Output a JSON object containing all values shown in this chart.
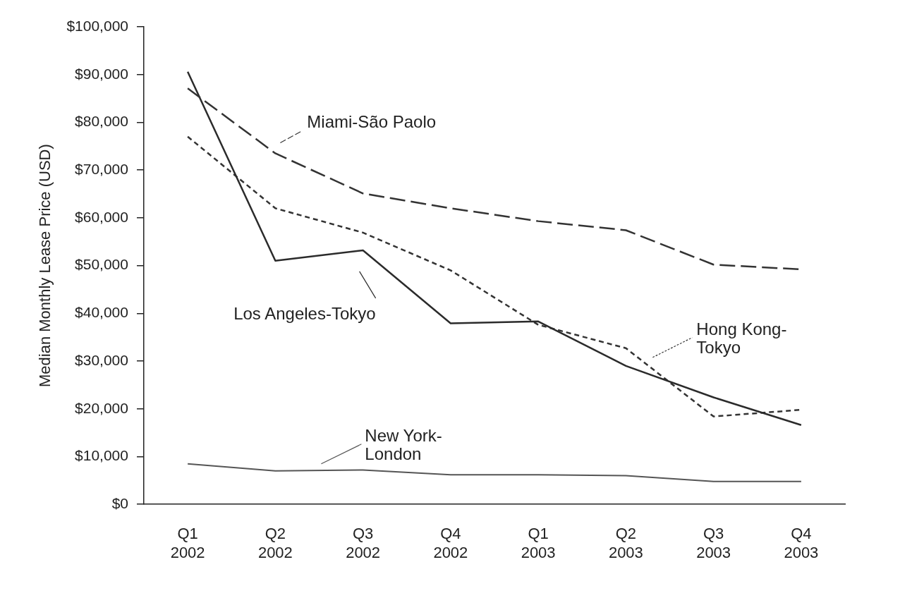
{
  "chart_data": {
    "type": "line",
    "ylabel": "Median Monthly Lease Price (USD)",
    "categories": [
      "Q1 2002",
      "Q2 2002",
      "Q3 2002",
      "Q4 2002",
      "Q1 2003",
      "Q2 2003",
      "Q3 2003",
      "Q4 2003"
    ],
    "series": [
      {
        "name": "Miami-São Paolo",
        "color": "#333333",
        "line_style": "dashed",
        "values": [
          87100,
          73500,
          65100,
          62000,
          59300,
          57400,
          50200,
          49200
        ]
      },
      {
        "name": "Los Angeles-Tokyo",
        "color": "#2b2b2b",
        "line_style": "solid",
        "values": [
          90600,
          51000,
          53200,
          37900,
          38300,
          29000,
          22400,
          16600
        ]
      },
      {
        "name": "Hong Kong-Tokyo",
        "color": "#333333",
        "line_style": "dotted",
        "values": [
          77000,
          62000,
          56900,
          49000,
          37600,
          32700,
          18400,
          19800
        ]
      },
      {
        "name": "New York-London",
        "color": "#555555",
        "line_style": "solid",
        "values": [
          8500,
          7000,
          7200,
          6200,
          6200,
          6000,
          4800,
          4800
        ]
      }
    ],
    "ylim": [
      0,
      100000
    ],
    "yticks": [
      {
        "value": 0,
        "label": "$0"
      },
      {
        "value": 10000,
        "label": "$10,000"
      },
      {
        "value": 20000,
        "label": "$20,000"
      },
      {
        "value": 30000,
        "label": "$30,000"
      },
      {
        "value": 40000,
        "label": "$40,000"
      },
      {
        "value": 50000,
        "label": "$50,000"
      },
      {
        "value": 60000,
        "label": "$60,000"
      },
      {
        "value": 70000,
        "label": "$70,000"
      },
      {
        "value": 80000,
        "label": "$80,000"
      },
      {
        "value": 90000,
        "label": "$90,000"
      },
      {
        "value": 100000,
        "label": "$100,000"
      }
    ],
    "grid": false,
    "legend": "bottom right",
    "marker": "none"
  }
}
